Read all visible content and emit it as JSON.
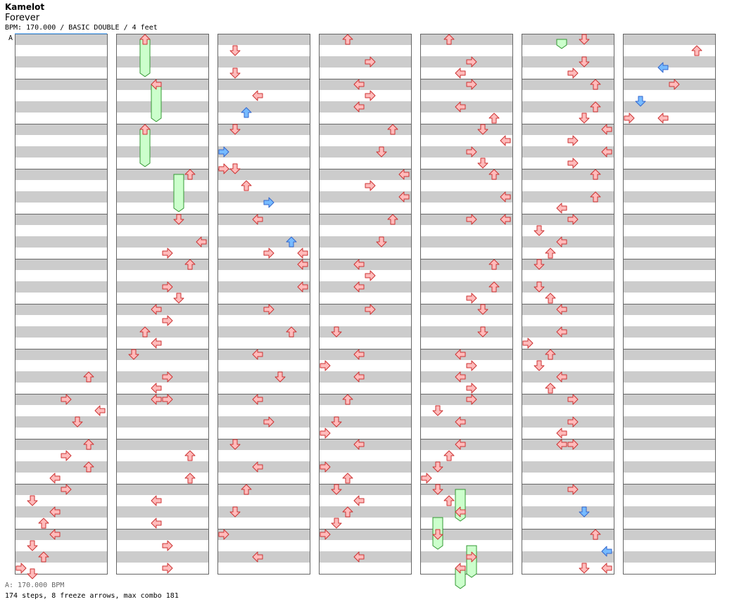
{
  "song": {
    "artist": "Kamelot",
    "title": "Forever",
    "meta": "BPM: 170.000 / BASIC DOUBLE / 4 feet",
    "bpm_marker": "A"
  },
  "footer": {
    "bpm_label": "A: 170.000 BPM",
    "summary": "174 steps, 8 freeze arrows, max combo 181"
  },
  "colors": {
    "stripe_gray": "#cccccc",
    "stripe_white": "#ffffff",
    "frame": "#666666",
    "arrow_red_fill": "#ffbbbb",
    "arrow_red_stroke": "#cc3333",
    "arrow_blue_fill": "#77bbff",
    "arrow_blue_stroke": "#3366cc",
    "freeze_fill": "#ccffcc",
    "freeze_stroke": "#339933"
  },
  "chart_data": {
    "type": "step-chart",
    "columns": 7,
    "measures_per_column": 12,
    "lanes": 8,
    "lane_icons": [
      "left-arrow-icon",
      "down-arrow-icon",
      "up-arrow-icon",
      "right-arrow-icon",
      "left-arrow-icon",
      "down-arrow-icon",
      "up-arrow-icon",
      "right-arrow-icon"
    ],
    "notes": [
      {
        "c": 0,
        "b": 30,
        "l": 6,
        "k": "r"
      },
      {
        "c": 0,
        "b": 32,
        "l": 4,
        "k": "r"
      },
      {
        "c": 0,
        "b": 33,
        "l": 7,
        "k": "r"
      },
      {
        "c": 0,
        "b": 34,
        "l": 5,
        "k": "r"
      },
      {
        "c": 0,
        "b": 36,
        "l": 6,
        "k": "r"
      },
      {
        "c": 0,
        "b": 37,
        "l": 4,
        "k": "r"
      },
      {
        "c": 0,
        "b": 38,
        "l": 6,
        "k": "r"
      },
      {
        "c": 0,
        "b": 39,
        "l": 3,
        "k": "r"
      },
      {
        "c": 0,
        "b": 40,
        "l": 4,
        "k": "r"
      },
      {
        "c": 0,
        "b": 41,
        "l": 1,
        "k": "r"
      },
      {
        "c": 0,
        "b": 42,
        "l": 3,
        "k": "r"
      },
      {
        "c": 0,
        "b": 43,
        "l": 2,
        "k": "r"
      },
      {
        "c": 0,
        "b": 44,
        "l": 3,
        "k": "r"
      },
      {
        "c": 0,
        "b": 45,
        "l": 1,
        "k": "r"
      },
      {
        "c": 0,
        "b": 46,
        "l": 2,
        "k": "r"
      },
      {
        "c": 0,
        "b": 47,
        "l": 0,
        "k": "r"
      },
      {
        "c": 0,
        "b": 47.5,
        "l": 1,
        "k": "r"
      },
      {
        "c": 1,
        "b": 0,
        "l": 2,
        "k": "r"
      },
      {
        "c": 1,
        "b": 4,
        "l": 3,
        "k": "r"
      },
      {
        "c": 1,
        "b": 8,
        "l": 2,
        "k": "r"
      },
      {
        "c": 1,
        "b": 12,
        "l": 6,
        "k": "r"
      },
      {
        "c": 1,
        "b": 16,
        "l": 5,
        "k": "r"
      },
      {
        "c": 1,
        "b": 18,
        "l": 7,
        "k": "r"
      },
      {
        "c": 1,
        "b": 19,
        "l": 4,
        "k": "r"
      },
      {
        "c": 1,
        "b": 20,
        "l": 6,
        "k": "r"
      },
      {
        "c": 1,
        "b": 22,
        "l": 4,
        "k": "r"
      },
      {
        "c": 1,
        "b": 23,
        "l": 5,
        "k": "r"
      },
      {
        "c": 1,
        "b": 24,
        "l": 3,
        "k": "r"
      },
      {
        "c": 1,
        "b": 25,
        "l": 4,
        "k": "r"
      },
      {
        "c": 1,
        "b": 26,
        "l": 2,
        "k": "r"
      },
      {
        "c": 1,
        "b": 27,
        "l": 3,
        "k": "r"
      },
      {
        "c": 1,
        "b": 28,
        "l": 1,
        "k": "r"
      },
      {
        "c": 1,
        "b": 30,
        "l": 4,
        "k": "r"
      },
      {
        "c": 1,
        "b": 31,
        "l": 3,
        "k": "r"
      },
      {
        "c": 1,
        "b": 32,
        "l": 3,
        "k": "r"
      },
      {
        "c": 1,
        "b": 32,
        "l": 4,
        "k": "r"
      },
      {
        "c": 1,
        "b": 37,
        "l": 6,
        "k": "r"
      },
      {
        "c": 1,
        "b": 39,
        "l": 6,
        "k": "r"
      },
      {
        "c": 1,
        "b": 41,
        "l": 3,
        "k": "r"
      },
      {
        "c": 1,
        "b": 43,
        "l": 3,
        "k": "r"
      },
      {
        "c": 1,
        "b": 45,
        "l": 4,
        "k": "r"
      },
      {
        "c": 1,
        "b": 47,
        "l": 4,
        "k": "r"
      },
      {
        "c": 2,
        "b": 1,
        "l": 1,
        "k": "r"
      },
      {
        "c": 2,
        "b": 3,
        "l": 1,
        "k": "r"
      },
      {
        "c": 2,
        "b": 5,
        "l": 3,
        "k": "r"
      },
      {
        "c": 2,
        "b": 6.5,
        "l": 2,
        "k": "b"
      },
      {
        "c": 2,
        "b": 8,
        "l": 1,
        "k": "r"
      },
      {
        "c": 2,
        "b": 10,
        "l": 0,
        "k": "b"
      },
      {
        "c": 2,
        "b": 11.5,
        "l": 0,
        "k": "r"
      },
      {
        "c": 2,
        "b": 11.5,
        "l": 1,
        "k": "r"
      },
      {
        "c": 2,
        "b": 13,
        "l": 2,
        "k": "r"
      },
      {
        "c": 2,
        "b": 14.5,
        "l": 4,
        "k": "b"
      },
      {
        "c": 2,
        "b": 16,
        "l": 3,
        "k": "r"
      },
      {
        "c": 2,
        "b": 18,
        "l": 6,
        "k": "b"
      },
      {
        "c": 2,
        "b": 19,
        "l": 4,
        "k": "r"
      },
      {
        "c": 2,
        "b": 19,
        "l": 7,
        "k": "r"
      },
      {
        "c": 2,
        "b": 20,
        "l": 7,
        "k": "r"
      },
      {
        "c": 2,
        "b": 22,
        "l": 7,
        "k": "r"
      },
      {
        "c": 2,
        "b": 24,
        "l": 4,
        "k": "r"
      },
      {
        "c": 2,
        "b": 26,
        "l": 6,
        "k": "r"
      },
      {
        "c": 2,
        "b": 28,
        "l": 3,
        "k": "r"
      },
      {
        "c": 2,
        "b": 30,
        "l": 5,
        "k": "r"
      },
      {
        "c": 2,
        "b": 32,
        "l": 3,
        "k": "r"
      },
      {
        "c": 2,
        "b": 34,
        "l": 4,
        "k": "r"
      },
      {
        "c": 2,
        "b": 36,
        "l": 1,
        "k": "r"
      },
      {
        "c": 2,
        "b": 38,
        "l": 3,
        "k": "r"
      },
      {
        "c": 2,
        "b": 40,
        "l": 2,
        "k": "r"
      },
      {
        "c": 2,
        "b": 42,
        "l": 1,
        "k": "r"
      },
      {
        "c": 2,
        "b": 44,
        "l": 0,
        "k": "r"
      },
      {
        "c": 2,
        "b": 46,
        "l": 3,
        "k": "r"
      },
      {
        "c": 3,
        "b": 0,
        "l": 2,
        "k": "r"
      },
      {
        "c": 3,
        "b": 2,
        "l": 4,
        "k": "r"
      },
      {
        "c": 3,
        "b": 4,
        "l": 3,
        "k": "r"
      },
      {
        "c": 3,
        "b": 5,
        "l": 4,
        "k": "r"
      },
      {
        "c": 3,
        "b": 6,
        "l": 3,
        "k": "r"
      },
      {
        "c": 3,
        "b": 8,
        "l": 6,
        "k": "r"
      },
      {
        "c": 3,
        "b": 10,
        "l": 5,
        "k": "r"
      },
      {
        "c": 3,
        "b": 12,
        "l": 7,
        "k": "r"
      },
      {
        "c": 3,
        "b": 13,
        "l": 4,
        "k": "r"
      },
      {
        "c": 3,
        "b": 14,
        "l": 7,
        "k": "r"
      },
      {
        "c": 3,
        "b": 16,
        "l": 6,
        "k": "r"
      },
      {
        "c": 3,
        "b": 18,
        "l": 5,
        "k": "r"
      },
      {
        "c": 3,
        "b": 20,
        "l": 3,
        "k": "r"
      },
      {
        "c": 3,
        "b": 21,
        "l": 4,
        "k": "r"
      },
      {
        "c": 3,
        "b": 22,
        "l": 3,
        "k": "r"
      },
      {
        "c": 3,
        "b": 24,
        "l": 4,
        "k": "r"
      },
      {
        "c": 3,
        "b": 26,
        "l": 1,
        "k": "r"
      },
      {
        "c": 3,
        "b": 28,
        "l": 3,
        "k": "r"
      },
      {
        "c": 3,
        "b": 29,
        "l": 0,
        "k": "r"
      },
      {
        "c": 3,
        "b": 30,
        "l": 3,
        "k": "r"
      },
      {
        "c": 3,
        "b": 32,
        "l": 2,
        "k": "r"
      },
      {
        "c": 3,
        "b": 34,
        "l": 1,
        "k": "r"
      },
      {
        "c": 3,
        "b": 35,
        "l": 0,
        "k": "r"
      },
      {
        "c": 3,
        "b": 36,
        "l": 3,
        "k": "r"
      },
      {
        "c": 3,
        "b": 38,
        "l": 0,
        "k": "r"
      },
      {
        "c": 3,
        "b": 39,
        "l": 2,
        "k": "r"
      },
      {
        "c": 3,
        "b": 40,
        "l": 1,
        "k": "r"
      },
      {
        "c": 3,
        "b": 41,
        "l": 3,
        "k": "r"
      },
      {
        "c": 3,
        "b": 42,
        "l": 2,
        "k": "r"
      },
      {
        "c": 3,
        "b": 43,
        "l": 1,
        "k": "r"
      },
      {
        "c": 3,
        "b": 44,
        "l": 0,
        "k": "r"
      },
      {
        "c": 3,
        "b": 46,
        "l": 3,
        "k": "r"
      },
      {
        "c": 4,
        "b": 0,
        "l": 2,
        "k": "r"
      },
      {
        "c": 4,
        "b": 2,
        "l": 4,
        "k": "r"
      },
      {
        "c": 4,
        "b": 3,
        "l": 3,
        "k": "r"
      },
      {
        "c": 4,
        "b": 4,
        "l": 4,
        "k": "r"
      },
      {
        "c": 4,
        "b": 6,
        "l": 3,
        "k": "r"
      },
      {
        "c": 4,
        "b": 7,
        "l": 6,
        "k": "r"
      },
      {
        "c": 4,
        "b": 8,
        "l": 5,
        "k": "r"
      },
      {
        "c": 4,
        "b": 9,
        "l": 7,
        "k": "r"
      },
      {
        "c": 4,
        "b": 10,
        "l": 4,
        "k": "r"
      },
      {
        "c": 4,
        "b": 11,
        "l": 5,
        "k": "r"
      },
      {
        "c": 4,
        "b": 12,
        "l": 6,
        "k": "r"
      },
      {
        "c": 4,
        "b": 14,
        "l": 7,
        "k": "r"
      },
      {
        "c": 4,
        "b": 16,
        "l": 4,
        "k": "r"
      },
      {
        "c": 4,
        "b": 16,
        "l": 7,
        "k": "r"
      },
      {
        "c": 4,
        "b": 20,
        "l": 6,
        "k": "r"
      },
      {
        "c": 4,
        "b": 22,
        "l": 6,
        "k": "r"
      },
      {
        "c": 4,
        "b": 23,
        "l": 4,
        "k": "r"
      },
      {
        "c": 4,
        "b": 24,
        "l": 5,
        "k": "r"
      },
      {
        "c": 4,
        "b": 26,
        "l": 5,
        "k": "r"
      },
      {
        "c": 4,
        "b": 28,
        "l": 3,
        "k": "r"
      },
      {
        "c": 4,
        "b": 29,
        "l": 4,
        "k": "r"
      },
      {
        "c": 4,
        "b": 30,
        "l": 3,
        "k": "r"
      },
      {
        "c": 4,
        "b": 31,
        "l": 4,
        "k": "r"
      },
      {
        "c": 4,
        "b": 32,
        "l": 4,
        "k": "r"
      },
      {
        "c": 4,
        "b": 33,
        "l": 1,
        "k": "r"
      },
      {
        "c": 4,
        "b": 34,
        "l": 3,
        "k": "r"
      },
      {
        "c": 4,
        "b": 36,
        "l": 3,
        "k": "r"
      },
      {
        "c": 4,
        "b": 37,
        "l": 2,
        "k": "r"
      },
      {
        "c": 4,
        "b": 38,
        "l": 1,
        "k": "r"
      },
      {
        "c": 4,
        "b": 39,
        "l": 0,
        "k": "r"
      },
      {
        "c": 4,
        "b": 40,
        "l": 1,
        "k": "r"
      },
      {
        "c": 4,
        "b": 41,
        "l": 2,
        "k": "r"
      },
      {
        "c": 4,
        "b": 42,
        "l": 3,
        "k": "r"
      },
      {
        "c": 4,
        "b": 44,
        "l": 1,
        "k": "r"
      },
      {
        "c": 4,
        "b": 46,
        "l": 4,
        "k": "r"
      },
      {
        "c": 4,
        "b": 47,
        "l": 3,
        "k": "r"
      },
      {
        "c": 5,
        "b": 0,
        "l": 5,
        "k": "r"
      },
      {
        "c": 5,
        "b": 2,
        "l": 5,
        "k": "r"
      },
      {
        "c": 5,
        "b": 3,
        "l": 4,
        "k": "r"
      },
      {
        "c": 5,
        "b": 4,
        "l": 6,
        "k": "r"
      },
      {
        "c": 5,
        "b": 6,
        "l": 6,
        "k": "r"
      },
      {
        "c": 5,
        "b": 7,
        "l": 5,
        "k": "r"
      },
      {
        "c": 5,
        "b": 8,
        "l": 7,
        "k": "r"
      },
      {
        "c": 5,
        "b": 9,
        "l": 4,
        "k": "r"
      },
      {
        "c": 5,
        "b": 10,
        "l": 7,
        "k": "r"
      },
      {
        "c": 5,
        "b": 11,
        "l": 4,
        "k": "r"
      },
      {
        "c": 5,
        "b": 12,
        "l": 6,
        "k": "r"
      },
      {
        "c": 5,
        "b": 14,
        "l": 6,
        "k": "r"
      },
      {
        "c": 5,
        "b": 15,
        "l": 3,
        "k": "r"
      },
      {
        "c": 5,
        "b": 16,
        "l": 4,
        "k": "r"
      },
      {
        "c": 5,
        "b": 17,
        "l": 1,
        "k": "r"
      },
      {
        "c": 5,
        "b": 18,
        "l": 3,
        "k": "r"
      },
      {
        "c": 5,
        "b": 19,
        "l": 2,
        "k": "r"
      },
      {
        "c": 5,
        "b": 20,
        "l": 1,
        "k": "r"
      },
      {
        "c": 5,
        "b": 22,
        "l": 1,
        "k": "r"
      },
      {
        "c": 5,
        "b": 23,
        "l": 2,
        "k": "r"
      },
      {
        "c": 5,
        "b": 24,
        "l": 3,
        "k": "r"
      },
      {
        "c": 5,
        "b": 26,
        "l": 3,
        "k": "r"
      },
      {
        "c": 5,
        "b": 27,
        "l": 0,
        "k": "r"
      },
      {
        "c": 5,
        "b": 28,
        "l": 2,
        "k": "r"
      },
      {
        "c": 5,
        "b": 29,
        "l": 1,
        "k": "r"
      },
      {
        "c": 5,
        "b": 30,
        "l": 3,
        "k": "r"
      },
      {
        "c": 5,
        "b": 31,
        "l": 2,
        "k": "r"
      },
      {
        "c": 5,
        "b": 32,
        "l": 4,
        "k": "r"
      },
      {
        "c": 5,
        "b": 34,
        "l": 4,
        "k": "r"
      },
      {
        "c": 5,
        "b": 35,
        "l": 3,
        "k": "r"
      },
      {
        "c": 5,
        "b": 36,
        "l": 3,
        "k": "r"
      },
      {
        "c": 5,
        "b": 36,
        "l": 4,
        "k": "r"
      },
      {
        "c": 5,
        "b": 40,
        "l": 4,
        "k": "r"
      },
      {
        "c": 5,
        "b": 42,
        "l": 5,
        "k": "b"
      },
      {
        "c": 5,
        "b": 44,
        "l": 6,
        "k": "r"
      },
      {
        "c": 5,
        "b": 45.5,
        "l": 7,
        "k": "b"
      },
      {
        "c": 5,
        "b": 47,
        "l": 5,
        "k": "r"
      },
      {
        "c": 5,
        "b": 47,
        "l": 7,
        "k": "r"
      },
      {
        "c": 6,
        "b": 1,
        "l": 6,
        "k": "r"
      },
      {
        "c": 6,
        "b": 2.5,
        "l": 3,
        "k": "b"
      },
      {
        "c": 6,
        "b": 4,
        "l": 4,
        "k": "r"
      },
      {
        "c": 6,
        "b": 5.5,
        "l": 1,
        "k": "b"
      },
      {
        "c": 6,
        "b": 7,
        "l": 0,
        "k": "r"
      },
      {
        "c": 6,
        "b": 7,
        "l": 3,
        "k": "r"
      }
    ],
    "freezes": [
      {
        "c": 1,
        "start": 0,
        "end": 3,
        "l": 2
      },
      {
        "c": 1,
        "start": 4,
        "end": 7,
        "l": 3
      },
      {
        "c": 1,
        "start": 8,
        "end": 11,
        "l": 2
      },
      {
        "c": 1,
        "start": 12,
        "end": 15,
        "l": 5
      },
      {
        "c": 4,
        "start": 40,
        "end": 42.5,
        "l": 3
      },
      {
        "c": 4,
        "start": 42.5,
        "end": 45,
        "l": 1
      },
      {
        "c": 4,
        "start": 45,
        "end": 47.5,
        "l": 4
      },
      {
        "c": 4,
        "start": 47,
        "end": 48.5,
        "l": 3
      },
      {
        "c": 5,
        "start": 0,
        "end": 0.5,
        "l": 3
      }
    ]
  }
}
